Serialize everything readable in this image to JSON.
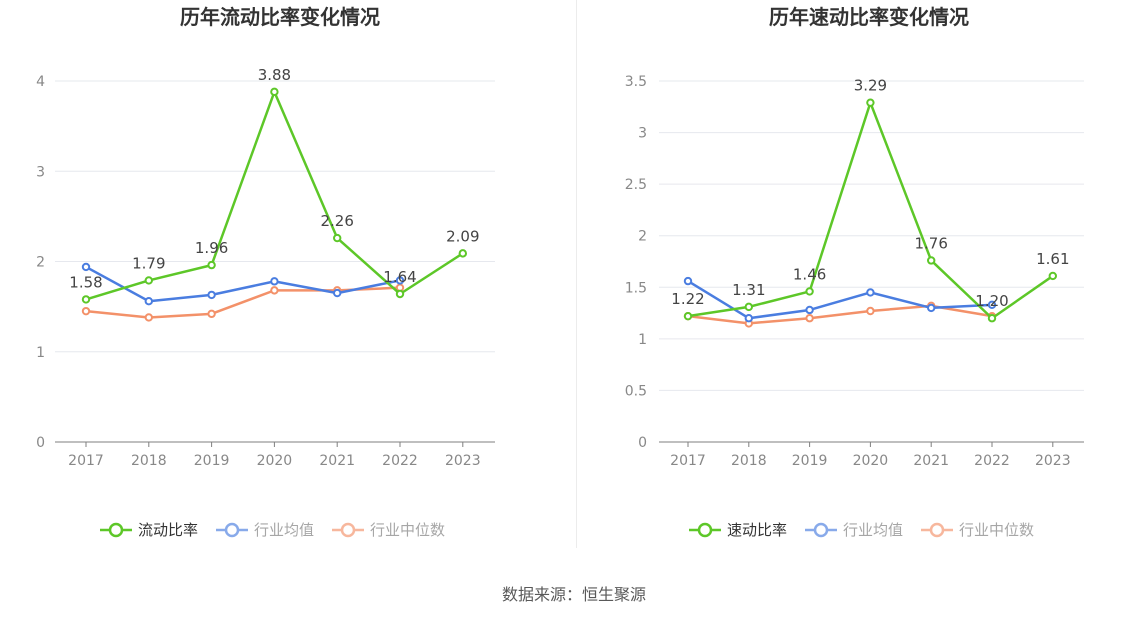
{
  "source": "数据来源：恒生聚源",
  "colors": {
    "main": "#5dc728",
    "avg": "#4a7de0",
    "median": "#f39169"
  },
  "chart_data": [
    {
      "type": "line",
      "title": "历年流动比率变化情况",
      "categories": [
        "2017",
        "2018",
        "2019",
        "2020",
        "2021",
        "2022",
        "2023"
      ],
      "ylim": [
        0,
        4
      ],
      "yticks": [
        0,
        1,
        2,
        3,
        4
      ],
      "ytick_labels": [
        "0",
        "1",
        "2",
        "3",
        "4"
      ],
      "grid": true,
      "legend_position": "bottom",
      "series": [
        {
          "name": "流动比率",
          "values": [
            1.58,
            1.79,
            1.96,
            3.88,
            2.26,
            1.64,
            2.09
          ],
          "labels": [
            "1.58",
            "1.79",
            "1.96",
            "3.88",
            "2.26",
            "1.64",
            "2.09"
          ]
        },
        {
          "name": "行业均值",
          "values": [
            1.94,
            1.56,
            1.63,
            1.78,
            1.65,
            1.79,
            null
          ]
        },
        {
          "name": "行业中位数",
          "values": [
            1.45,
            1.38,
            1.42,
            1.68,
            1.68,
            1.71,
            null
          ]
        }
      ]
    },
    {
      "type": "line",
      "title": "历年速动比率变化情况",
      "categories": [
        "2017",
        "2018",
        "2019",
        "2020",
        "2021",
        "2022",
        "2023"
      ],
      "ylim": [
        0,
        3.5
      ],
      "yticks": [
        0,
        0.5,
        1,
        1.5,
        2,
        2.5,
        3,
        3.5
      ],
      "ytick_labels": [
        "0",
        "0.5",
        "1",
        "1.5",
        "2",
        "2.5",
        "3",
        "3.5"
      ],
      "grid": true,
      "legend_position": "bottom",
      "series": [
        {
          "name": "速动比率",
          "values": [
            1.22,
            1.31,
            1.46,
            3.29,
            1.76,
            1.2,
            1.61
          ],
          "labels": [
            "1.22",
            "1.31",
            "1.46",
            "3.29",
            "1.76",
            "1.20",
            "1.61"
          ]
        },
        {
          "name": "行业均值",
          "values": [
            1.56,
            1.2,
            1.28,
            1.45,
            1.3,
            1.33,
            null
          ]
        },
        {
          "name": "行业中位数",
          "values": [
            1.22,
            1.15,
            1.2,
            1.27,
            1.32,
            1.22,
            null
          ]
        }
      ]
    }
  ]
}
